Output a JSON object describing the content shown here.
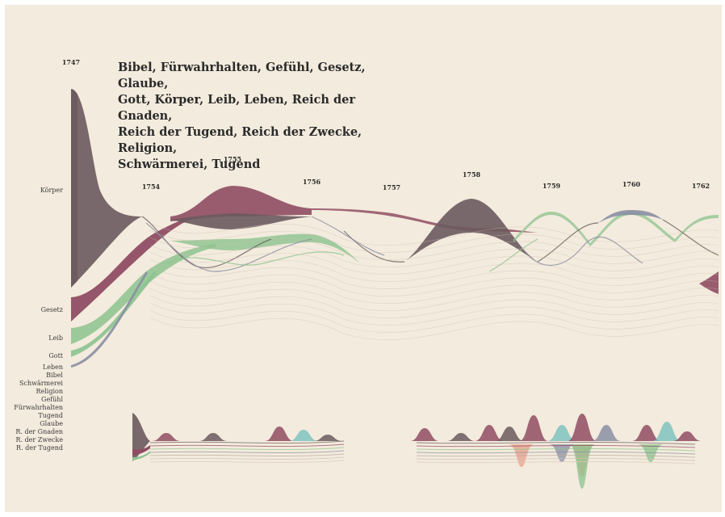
{
  "title": "Bibel, Fürwahrhalten, Gefühl, Gesetz, Glaube,\nGott, Körper, Leib, Leben, Reich der Gnaden,\nReich der Tugend, Reich der Zwecke, Religion,\nSchwärmerei, Tugend",
  "colors": {
    "background": "#f3ebdd",
    "dark": "#6b5a5e",
    "rose": "#8f4d63",
    "green": "#8cc38e",
    "blue": "#8a8fa3",
    "teal": "#7fc3c0",
    "salmon": "#e8a08a"
  },
  "chart_data": {
    "type": "area",
    "years": [
      "1747",
      "1754",
      "1755",
      "1756",
      "1757",
      "1758",
      "1759",
      "1760",
      "1762"
    ],
    "terms": [
      "Körper",
      "Gesetz",
      "Leib",
      "Gott",
      "Leben",
      "Bibel",
      "Schwärmerei",
      "Religion",
      "Gefühl",
      "Fürwahrhalten",
      "Tugend",
      "Glaube",
      "R. der Gnaden",
      "R. der Zwecke",
      "R. der Tugend"
    ],
    "series": [
      {
        "name": "Körper",
        "values": [
          25,
          1,
          3,
          1,
          0,
          3,
          0,
          1,
          0
        ]
      },
      {
        "name": "Gesetz",
        "values": [
          3,
          0.5,
          5,
          1.5,
          0,
          0.5,
          0,
          0,
          1.5
        ]
      },
      {
        "name": "Leib",
        "values": [
          2,
          0.3,
          1,
          0.5,
          0.2,
          0.2,
          0.5,
          0.2,
          0.5
        ]
      },
      {
        "name": "Gott",
        "values": [
          0.5,
          0.3,
          0.5,
          0.3,
          0,
          0.2,
          0.2,
          0.6,
          0.3
        ]
      },
      {
        "name": "Leben",
        "values": [
          0.3,
          0.2,
          0.2,
          0.2,
          0.1,
          0.1,
          0.1,
          0.2,
          0.2
        ]
      }
    ]
  }
}
